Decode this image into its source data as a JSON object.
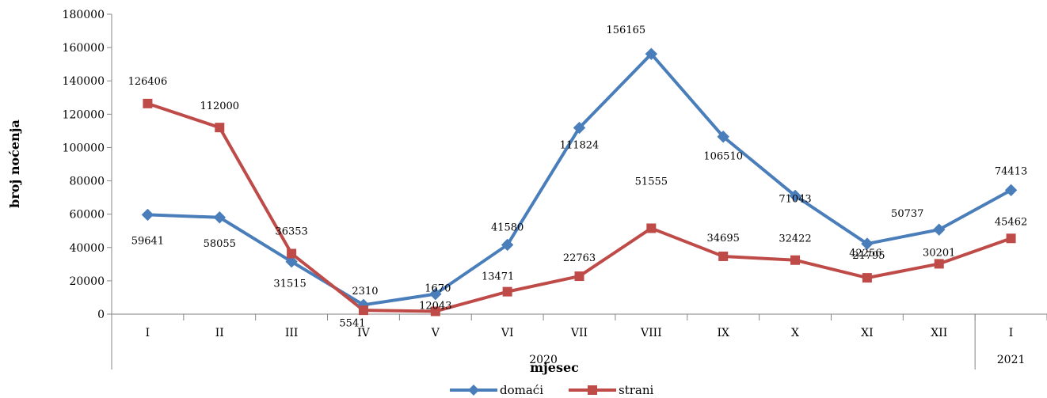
{
  "chart_data": {
    "type": "line",
    "title": "",
    "xlabel": "mjesec",
    "ylabel": "broj noćenja",
    "categories": [
      "I",
      "II",
      "III",
      "IV",
      "V",
      "VI",
      "VII",
      "VIII",
      "IX",
      "X",
      "XI",
      "XII",
      "I"
    ],
    "year_groups": [
      {
        "label": "2020",
        "count": 12
      },
      {
        "label": "2021",
        "count": 1
      }
    ],
    "ylim": [
      0,
      180000
    ],
    "yticks": [
      0,
      20000,
      40000,
      60000,
      80000,
      100000,
      120000,
      140000,
      160000,
      180000
    ],
    "grid": false,
    "legend_position": "bottom",
    "series": [
      {
        "name": "domaći",
        "color": "#4a7ebb",
        "marker": "diamond",
        "values": [
          59641,
          58055,
          31515,
          5541,
          12043,
          41580,
          111824,
          156165,
          106510,
          71043,
          42256,
          50737,
          74413
        ]
      },
      {
        "name": "strani",
        "color": "#be4b48",
        "marker": "square",
        "values": [
          126406,
          112000,
          36353,
          2310,
          1670,
          13471,
          22763,
          51555,
          34695,
          32422,
          21795,
          30201,
          45462
        ]
      }
    ]
  }
}
